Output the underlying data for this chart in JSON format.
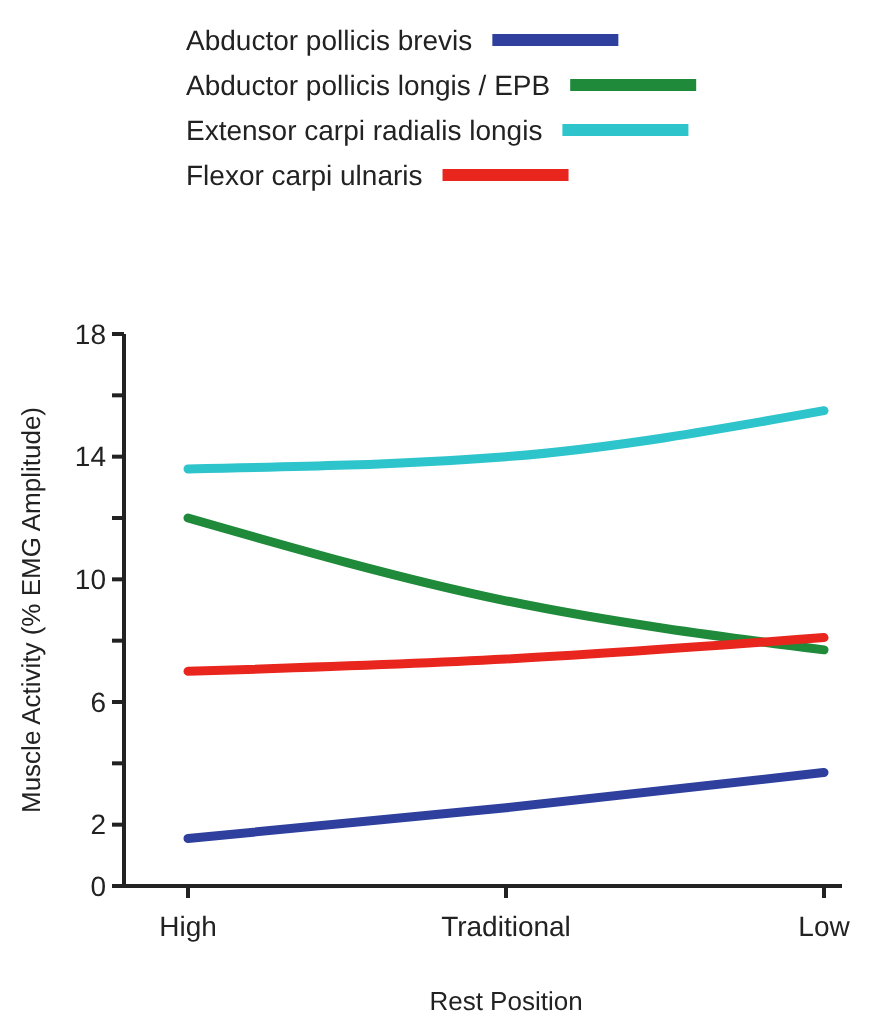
{
  "chart_data": {
    "type": "line",
    "xlabel": "Rest Position",
    "ylabel": "Muscle Activity (% EMG Amplitude)",
    "categories": [
      "High",
      "Traditional",
      "Low"
    ],
    "ylim": [
      0,
      18
    ],
    "yticks": [
      0,
      2,
      {
        "value": 4,
        "label": null
      },
      6,
      {
        "value": 8,
        "label": null
      },
      10,
      {
        "value": 12,
        "label": null
      },
      14,
      {
        "value": 16,
        "label": null
      },
      18
    ],
    "legend": "top",
    "grid": false,
    "marker": "none",
    "line_style": "solid",
    "series": [
      {
        "name": "Abductor pollicis brevis",
        "color": "#2e3f9e",
        "values": [
          1.55,
          2.55,
          3.7
        ]
      },
      {
        "name": "Abductor pollicis longis / EPB",
        "color": "#1e8a3a",
        "values": [
          12.0,
          9.3,
          7.7
        ]
      },
      {
        "name": "Extensor carpi radialis longis",
        "color": "#2ec4cc",
        "values": [
          13.6,
          14.0,
          15.5
        ]
      },
      {
        "name": "Flexor carpi ulnaris",
        "color": "#e8261e",
        "values": [
          7.0,
          7.4,
          8.1
        ]
      }
    ]
  }
}
